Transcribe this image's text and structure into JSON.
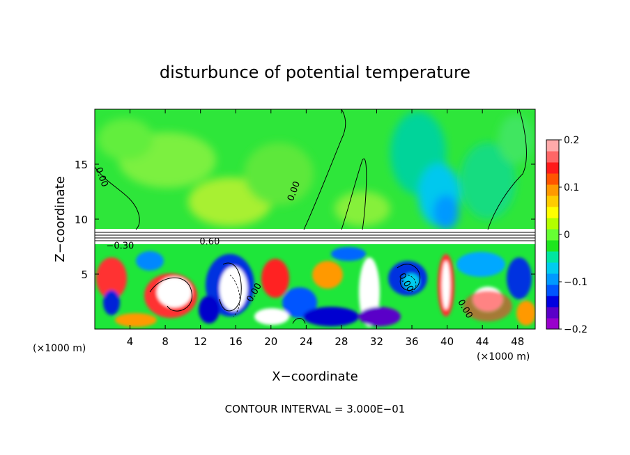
{
  "chart_data": {
    "type": "heatmap",
    "title": "disturbunce of potential temperature",
    "xlabel": "X−coordinate",
    "ylabel": "Z−coordinate",
    "x_unit": "(×1000 m)",
    "x_unit_right": "(×1000 m)",
    "xlim": [
      0,
      50
    ],
    "ylim": [
      0,
      20
    ],
    "x_ticks": [
      4,
      8,
      12,
      16,
      20,
      24,
      28,
      32,
      36,
      40,
      44,
      48
    ],
    "y_ticks": [
      5,
      10,
      15
    ],
    "colorbar": {
      "min": -0.2,
      "max": 0.2,
      "ticks": [
        0.2,
        0.1,
        0,
        -0.1,
        -0.2
      ],
      "tick_labels": [
        "0.2",
        "0.1",
        "0",
        "−0.1",
        "−0.2"
      ],
      "colors": [
        "#9900cc",
        "#5a00c8",
        "#0000e0",
        "#0055ff",
        "#0099ff",
        "#00ccee",
        "#00e6a0",
        "#1ee61e",
        "#66ff33",
        "#b3ff00",
        "#ffff00",
        "#ffcc00",
        "#ff9900",
        "#ff5500",
        "#ff1a1a",
        "#ff6666",
        "#ffaaaa"
      ]
    },
    "contour_labels": [
      "0.00",
      "0.00",
      "0.60",
      "0.00",
      "0.00",
      "0.00",
      "−0.30"
    ],
    "contour_interval_text": "CONTOUR INTERVAL = 3.000E−01"
  }
}
